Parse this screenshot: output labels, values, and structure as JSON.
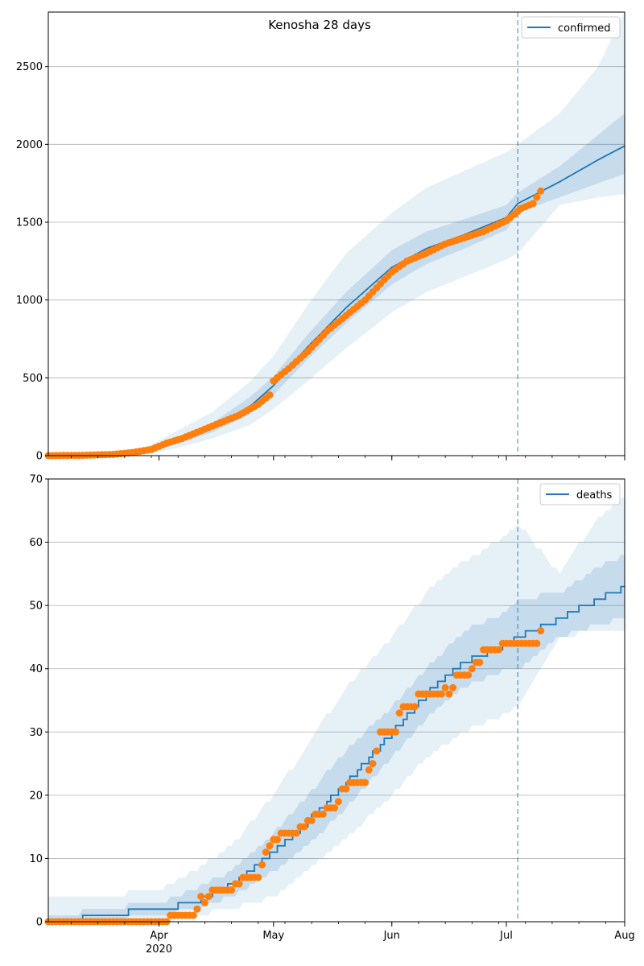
{
  "chart_data": [
    {
      "type": "line",
      "title": "Kenosha 28 days",
      "xlabel": "",
      "ylabel": "",
      "x_range": [
        "2020-03-03",
        "2020-08-01"
      ],
      "ylim": [
        0,
        2850
      ],
      "yticks": [
        0,
        500,
        1000,
        1500,
        2000,
        2500
      ],
      "xticks": [
        {
          "date": "2020-04-01",
          "label": "Apr",
          "sublabel": "2020"
        },
        {
          "date": "2020-05-01",
          "label": "May",
          "sublabel": ""
        },
        {
          "date": "2020-06-01",
          "label": "Jun",
          "sublabel": ""
        },
        {
          "date": "2020-07-01",
          "label": "Jul",
          "sublabel": ""
        },
        {
          "date": "2020-08-01",
          "label": "Aug",
          "sublabel": ""
        }
      ],
      "grid": "horizontal",
      "legend": {
        "placement": "top-right",
        "entries": [
          "confirmed"
        ]
      },
      "forecast_start": "2020-07-04",
      "colors": {
        "model": "#1f77b4",
        "observed": "#ff7f0e",
        "band": "#1f77b4",
        "vline": "#1f77b4"
      },
      "series": [
        {
          "name": "confirmed",
          "kind": "model",
          "dates": [
            "2020-03-03",
            "2020-03-20",
            "2020-03-28",
            "2020-04-05",
            "2020-04-15",
            "2020-04-25",
            "2020-05-01",
            "2020-05-10",
            "2020-05-20",
            "2020-06-01",
            "2020-06-10",
            "2020-06-20",
            "2020-07-01",
            "2020-07-04",
            "2020-07-15",
            "2020-07-25",
            "2020-08-01"
          ],
          "values": [
            0,
            5,
            20,
            90,
            180,
            320,
            450,
            700,
            950,
            1210,
            1330,
            1420,
            1530,
            1620,
            1760,
            1900,
            1990
          ],
          "band_inner": {
            "lower": [
              0,
              3,
              12,
              70,
              150,
              270,
              390,
              620,
              850,
              1100,
              1230,
              1330,
              1450,
              1560,
              1660,
              1750,
              1810
            ],
            "upper": [
              0,
              8,
              28,
              110,
              210,
              380,
              510,
              780,
              1050,
              1320,
              1440,
              1520,
              1610,
              1690,
              1860,
              2060,
              2200
            ]
          },
          "band_outer": {
            "lower": [
              0,
              1,
              5,
              45,
              110,
              200,
              300,
              480,
              690,
              920,
              1050,
              1150,
              1260,
              1300,
              1610,
              1660,
              1680
            ],
            "upper": [
              0,
              12,
              45,
              150,
              280,
              480,
              640,
              970,
              1300,
              1560,
              1720,
              1830,
              1950,
              2000,
              2200,
              2500,
              2850
            ]
          }
        },
        {
          "name": "",
          "kind": "observed",
          "dates": [
            "2020-03-03",
            "2020-03-12",
            "2020-03-20",
            "2020-03-25",
            "2020-03-30",
            "2020-04-03",
            "2020-04-07",
            "2020-04-12",
            "2020-04-17",
            "2020-04-22",
            "2020-04-27",
            "2020-04-30",
            "2020-05-01",
            "2020-05-05",
            "2020-05-10",
            "2020-05-15",
            "2020-05-20",
            "2020-05-25",
            "2020-05-30",
            "2020-06-01",
            "2020-06-05",
            "2020-06-10",
            "2020-06-15",
            "2020-06-20",
            "2020-06-25",
            "2020-07-01",
            "2020-07-05",
            "2020-07-08",
            "2020-07-10"
          ],
          "values": [
            0,
            2,
            8,
            20,
            40,
            80,
            110,
            160,
            210,
            260,
            330,
            390,
            480,
            560,
            670,
            800,
            900,
            1000,
            1130,
            1180,
            1250,
            1300,
            1360,
            1400,
            1440,
            1510,
            1590,
            1620,
            1700
          ]
        }
      ]
    },
    {
      "type": "line",
      "title": "",
      "xlabel": "",
      "ylabel": "",
      "x_range": [
        "2020-03-03",
        "2020-08-01"
      ],
      "ylim": [
        0,
        70
      ],
      "yticks": [
        0,
        10,
        20,
        30,
        40,
        50,
        60,
        70
      ],
      "xticks": [
        {
          "date": "2020-04-01",
          "label": "Apr",
          "sublabel": "2020"
        },
        {
          "date": "2020-05-01",
          "label": "May",
          "sublabel": ""
        },
        {
          "date": "2020-06-01",
          "label": "Jun",
          "sublabel": ""
        },
        {
          "date": "2020-07-01",
          "label": "Jul",
          "sublabel": ""
        },
        {
          "date": "2020-08-01",
          "label": "Aug",
          "sublabel": ""
        }
      ],
      "grid": "horizontal",
      "legend": {
        "placement": "top-right",
        "entries": [
          "deaths"
        ]
      },
      "forecast_start": "2020-07-04",
      "colors": {
        "model": "#1f77b4",
        "observed": "#ff7f0e",
        "band": "#1f77b4",
        "vline": "#1f77b4"
      },
      "series": [
        {
          "name": "deaths",
          "kind": "model",
          "dates": [
            "2020-03-03",
            "2020-03-08",
            "2020-03-15",
            "2020-04-01",
            "2020-04-10",
            "2020-04-20",
            "2020-05-01",
            "2020-05-10",
            "2020-05-20",
            "2020-06-01",
            "2020-06-10",
            "2020-06-20",
            "2020-07-01",
            "2020-07-04",
            "2020-07-15",
            "2020-07-25",
            "2020-08-01"
          ],
          "values": [
            0,
            0,
            1,
            2,
            3,
            6,
            11,
            16,
            22,
            30,
            36,
            41,
            44,
            45,
            48,
            51,
            53
          ],
          "band_inner": {
            "lower": [
              0,
              0,
              0,
              1,
              2,
              4,
              8,
              12,
              18,
              26,
              32,
              37,
              40,
              40,
              45,
              47,
              48
            ],
            "upper": [
              1,
              1,
              2,
              3,
              5,
              8,
              14,
              20,
              27,
              34,
              40,
              46,
              49,
              51,
              52,
              56,
              58
            ]
          },
          "band_outer": {
            "lower": [
              0,
              0,
              0,
              0,
              1,
              2,
              4,
              8,
              13,
              20,
              26,
              30,
              33,
              34,
              45,
              46,
              46
            ],
            "upper": [
              4,
              4,
              4,
              5,
              8,
              12,
              20,
              28,
              37,
              45,
              52,
              57,
              61,
              63,
              55,
              64,
              67
            ]
          }
        },
        {
          "name": "",
          "kind": "observed",
          "steps": [
            {
              "start": "2020-03-03",
              "end": "2020-04-03",
              "value": 0
            },
            {
              "start": "2020-04-04",
              "end": "2020-04-10",
              "value": 1
            },
            {
              "start": "2020-04-11",
              "end": "2020-04-11",
              "value": 2
            },
            {
              "start": "2020-04-12",
              "end": "2020-04-12",
              "value": 4
            },
            {
              "start": "2020-04-13",
              "end": "2020-04-13",
              "value": 3
            },
            {
              "start": "2020-04-14",
              "end": "2020-04-14",
              "value": 4
            },
            {
              "start": "2020-04-15",
              "end": "2020-04-20",
              "value": 5
            },
            {
              "start": "2020-04-21",
              "end": "2020-04-22",
              "value": 6
            },
            {
              "start": "2020-04-23",
              "end": "2020-04-27",
              "value": 7
            },
            {
              "start": "2020-04-28",
              "end": "2020-04-28",
              "value": 9
            },
            {
              "start": "2020-04-29",
              "end": "2020-04-29",
              "value": 11
            },
            {
              "start": "2020-04-30",
              "end": "2020-04-30",
              "value": 12
            },
            {
              "start": "2020-05-01",
              "end": "2020-05-02",
              "value": 13
            },
            {
              "start": "2020-05-03",
              "end": "2020-05-07",
              "value": 14
            },
            {
              "start": "2020-05-08",
              "end": "2020-05-09",
              "value": 15
            },
            {
              "start": "2020-05-10",
              "end": "2020-05-11",
              "value": 16
            },
            {
              "start": "2020-05-12",
              "end": "2020-05-14",
              "value": 17
            },
            {
              "start": "2020-05-15",
              "end": "2020-05-17",
              "value": 18
            },
            {
              "start": "2020-05-18",
              "end": "2020-05-18",
              "value": 19
            },
            {
              "start": "2020-05-19",
              "end": "2020-05-20",
              "value": 21
            },
            {
              "start": "2020-05-21",
              "end": "2020-05-25",
              "value": 22
            },
            {
              "start": "2020-05-26",
              "end": "2020-05-26",
              "value": 24
            },
            {
              "start": "2020-05-27",
              "end": "2020-05-27",
              "value": 25
            },
            {
              "start": "2020-05-28",
              "end": "2020-05-28",
              "value": 27
            },
            {
              "start": "2020-05-29",
              "end": "2020-06-02",
              "value": 30
            },
            {
              "start": "2020-06-03",
              "end": "2020-06-03",
              "value": 33
            },
            {
              "start": "2020-06-04",
              "end": "2020-06-07",
              "value": 34
            },
            {
              "start": "2020-06-08",
              "end": "2020-06-14",
              "value": 36
            },
            {
              "start": "2020-06-15",
              "end": "2020-06-15",
              "value": 37
            },
            {
              "start": "2020-06-16",
              "end": "2020-06-16",
              "value": 36
            },
            {
              "start": "2020-06-17",
              "end": "2020-06-17",
              "value": 37
            },
            {
              "start": "2020-06-18",
              "end": "2020-06-21",
              "value": 39
            },
            {
              "start": "2020-06-22",
              "end": "2020-06-22",
              "value": 40
            },
            {
              "start": "2020-06-23",
              "end": "2020-06-24",
              "value": 41
            },
            {
              "start": "2020-06-25",
              "end": "2020-06-29",
              "value": 43
            },
            {
              "start": "2020-06-30",
              "end": "2020-07-09",
              "value": 44
            },
            {
              "start": "2020-07-10",
              "end": "2020-07-10",
              "value": 46
            }
          ]
        }
      ]
    }
  ]
}
